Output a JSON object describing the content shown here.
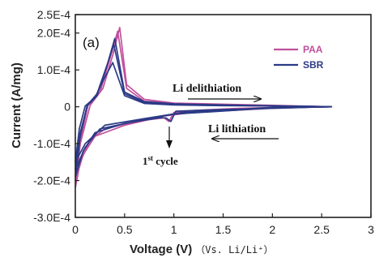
{
  "chart_data": {
    "type": "line",
    "panel_label": "(a)",
    "xlabel": "Voltage (V)",
    "xlabel_note": "（Vs. Li/Li⁺）",
    "ylabel": "Current (A/mg)",
    "xlim": [
      0,
      3
    ],
    "ylim": [
      -0.0003,
      0.00025
    ],
    "x_ticks": [
      "0",
      "0.5",
      "1",
      "1.5",
      "2",
      "2.5",
      "3"
    ],
    "x_tick_values": [
      0,
      0.5,
      1,
      1.5,
      2,
      2.5,
      3
    ],
    "y_ticks": [
      "2.5E-4",
      "2.0E-4",
      "1.0E-4",
      "0",
      "-1.0E-4",
      "-2.0E-4",
      "-3.0E-4"
    ],
    "y_tick_values": [
      0.00025,
      0.0002,
      0.0001,
      0,
      -0.0001,
      -0.0002,
      -0.0003
    ],
    "legend": [
      {
        "name": "PAA",
        "color": "#c0509c"
      },
      {
        "name": "SBR",
        "color": "#2b3a86"
      }
    ],
    "annotations": {
      "delithiation": "Li delithiation",
      "lithiation": "Li  lithiation",
      "first_cycle": "1",
      "first_cycle_sup": "st",
      "first_cycle_rest": " cycle"
    },
    "series": [
      {
        "name": "PAA",
        "color": "#c0509c",
        "cycles": [
          {
            "points": [
              [
                0,
                -0.00022
              ],
              [
                0.05,
                -0.00015
              ],
              [
                0.15,
                -9e-05
              ],
              [
                0.3,
                -6e-05
              ],
              [
                0.6,
                -4e-05
              ],
              [
                0.9,
                -3e-05
              ],
              [
                0.95,
                -4e-05
              ],
              [
                1.0,
                -1.5e-05
              ],
              [
                1.2,
                -1e-05
              ],
              [
                1.6,
                -5e-06
              ],
              [
                2.0,
                -2e-06
              ],
              [
                2.6,
                0
              ],
              [
                2.0,
                4e-06
              ],
              [
                1.5,
                7e-06
              ],
              [
                1.0,
                1e-05
              ],
              [
                0.7,
                2e-05
              ],
              [
                0.52,
                6e-05
              ],
              [
                0.45,
                0.000215
              ],
              [
                0.38,
                0.00014
              ],
              [
                0.28,
                5e-05
              ],
              [
                0.15,
                4e-06
              ],
              [
                0.05,
                -0.0001
              ],
              [
                0,
                -0.00022
              ]
            ]
          },
          {
            "points": [
              [
                0,
                -0.0002
              ],
              [
                0.08,
                -0.00013
              ],
              [
                0.2,
                -8e-05
              ],
              [
                0.5,
                -5e-05
              ],
              [
                0.9,
                -2.5e-05
              ],
              [
                1.2,
                -1.5e-05
              ],
              [
                2.0,
                -4e-06
              ],
              [
                2.6,
                0
              ],
              [
                2.0,
                3e-06
              ],
              [
                1.5,
                6e-06
              ],
              [
                1.0,
                9e-06
              ],
              [
                0.7,
                1.5e-05
              ],
              [
                0.52,
                5e-05
              ],
              [
                0.43,
                0.000205
              ],
              [
                0.35,
                0.00013
              ],
              [
                0.25,
                4e-05
              ],
              [
                0.13,
                5e-06
              ],
              [
                0.05,
                -9e-05
              ],
              [
                0,
                -0.0002
              ]
            ]
          }
        ]
      },
      {
        "name": "SBR",
        "color": "#2b3a86",
        "cycles": [
          {
            "points": [
              [
                0,
                -0.00019
              ],
              [
                0.08,
                -0.00012
              ],
              [
                0.2,
                -7e-05
              ],
              [
                0.5,
                -4.5e-05
              ],
              [
                0.85,
                -3e-05
              ],
              [
                0.92,
                -3e-05
              ],
              [
                0.97,
                -4e-05
              ],
              [
                1.02,
                -1.2e-05
              ],
              [
                1.4,
                -8e-06
              ],
              [
                2.0,
                -4e-06
              ],
              [
                2.6,
                0
              ],
              [
                2.0,
                3e-06
              ],
              [
                1.5,
                5e-06
              ],
              [
                1.0,
                8e-06
              ],
              [
                0.7,
                1.4e-05
              ],
              [
                0.5,
                4e-05
              ],
              [
                0.4,
                0.000185
              ],
              [
                0.33,
                0.00012
              ],
              [
                0.22,
                3.5e-05
              ],
              [
                0.12,
                4e-06
              ],
              [
                0.05,
                -8e-05
              ],
              [
                0,
                -0.00019
              ]
            ]
          },
          {
            "points": [
              [
                0,
                -0.00017
              ],
              [
                0.1,
                -0.00011
              ],
              [
                0.25,
                -6e-05
              ],
              [
                0.6,
                -4e-05
              ],
              [
                1.0,
                -2e-05
              ],
              [
                2.0,
                -3e-06
              ],
              [
                2.6,
                0
              ],
              [
                2.0,
                2e-06
              ],
              [
                1.5,
                4e-06
              ],
              [
                1.0,
                7e-06
              ],
              [
                0.7,
                1.2e-05
              ],
              [
                0.5,
                3.5e-05
              ],
              [
                0.39,
                0.00017
              ],
              [
                0.32,
                0.00011
              ],
              [
                0.22,
                3e-05
              ],
              [
                0.12,
                2e-06
              ],
              [
                0.05,
                -7e-05
              ],
              [
                0,
                -0.00017
              ]
            ]
          },
          {
            "points": [
              [
                0,
                -0.00015
              ],
              [
                0.1,
                -0.0001
              ],
              [
                0.3,
                -5e-05
              ],
              [
                0.7,
                -3.2e-05
              ],
              [
                1.1,
                -1.5e-05
              ],
              [
                2.0,
                -2e-06
              ],
              [
                2.6,
                0
              ],
              [
                2.0,
                2e-06
              ],
              [
                1.5,
                3e-06
              ],
              [
                1.0,
                5e-06
              ],
              [
                0.7,
                9e-06
              ],
              [
                0.5,
                3e-05
              ],
              [
                0.38,
                0.00012
              ],
              [
                0.3,
                8e-05
              ],
              [
                0.2,
                2.5e-05
              ],
              [
                0.1,
                2e-06
              ],
              [
                0.04,
                -6e-05
              ],
              [
                0,
                -0.00015
              ]
            ]
          }
        ]
      }
    ]
  }
}
